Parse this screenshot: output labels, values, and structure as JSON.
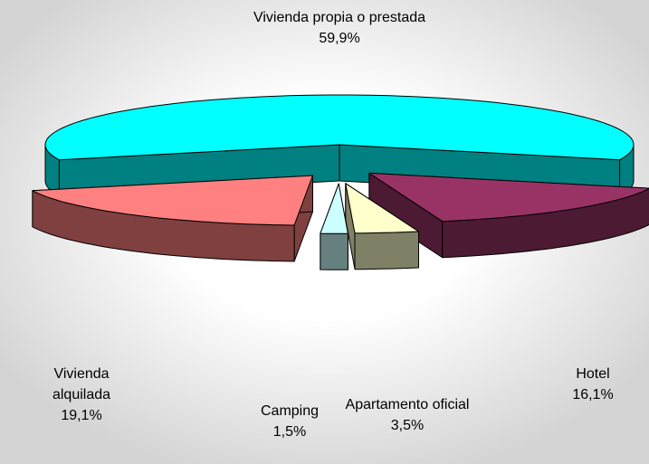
{
  "chart_data": {
    "type": "pie",
    "categories": [
      "Vivienda propia o prestada",
      "Hotel",
      "Apartamento oficial",
      "Camping",
      "Vivienda alquilada"
    ],
    "values": [
      59.9,
      16.1,
      3.5,
      1.5,
      19.1
    ],
    "value_labels": [
      "59,9%",
      "16,1%",
      "3,5%",
      "1,5%",
      "19,1%"
    ],
    "colors": [
      "#00ffff",
      "#993366",
      "#ffffcc",
      "#ccffff",
      "#ff8080"
    ]
  }
}
